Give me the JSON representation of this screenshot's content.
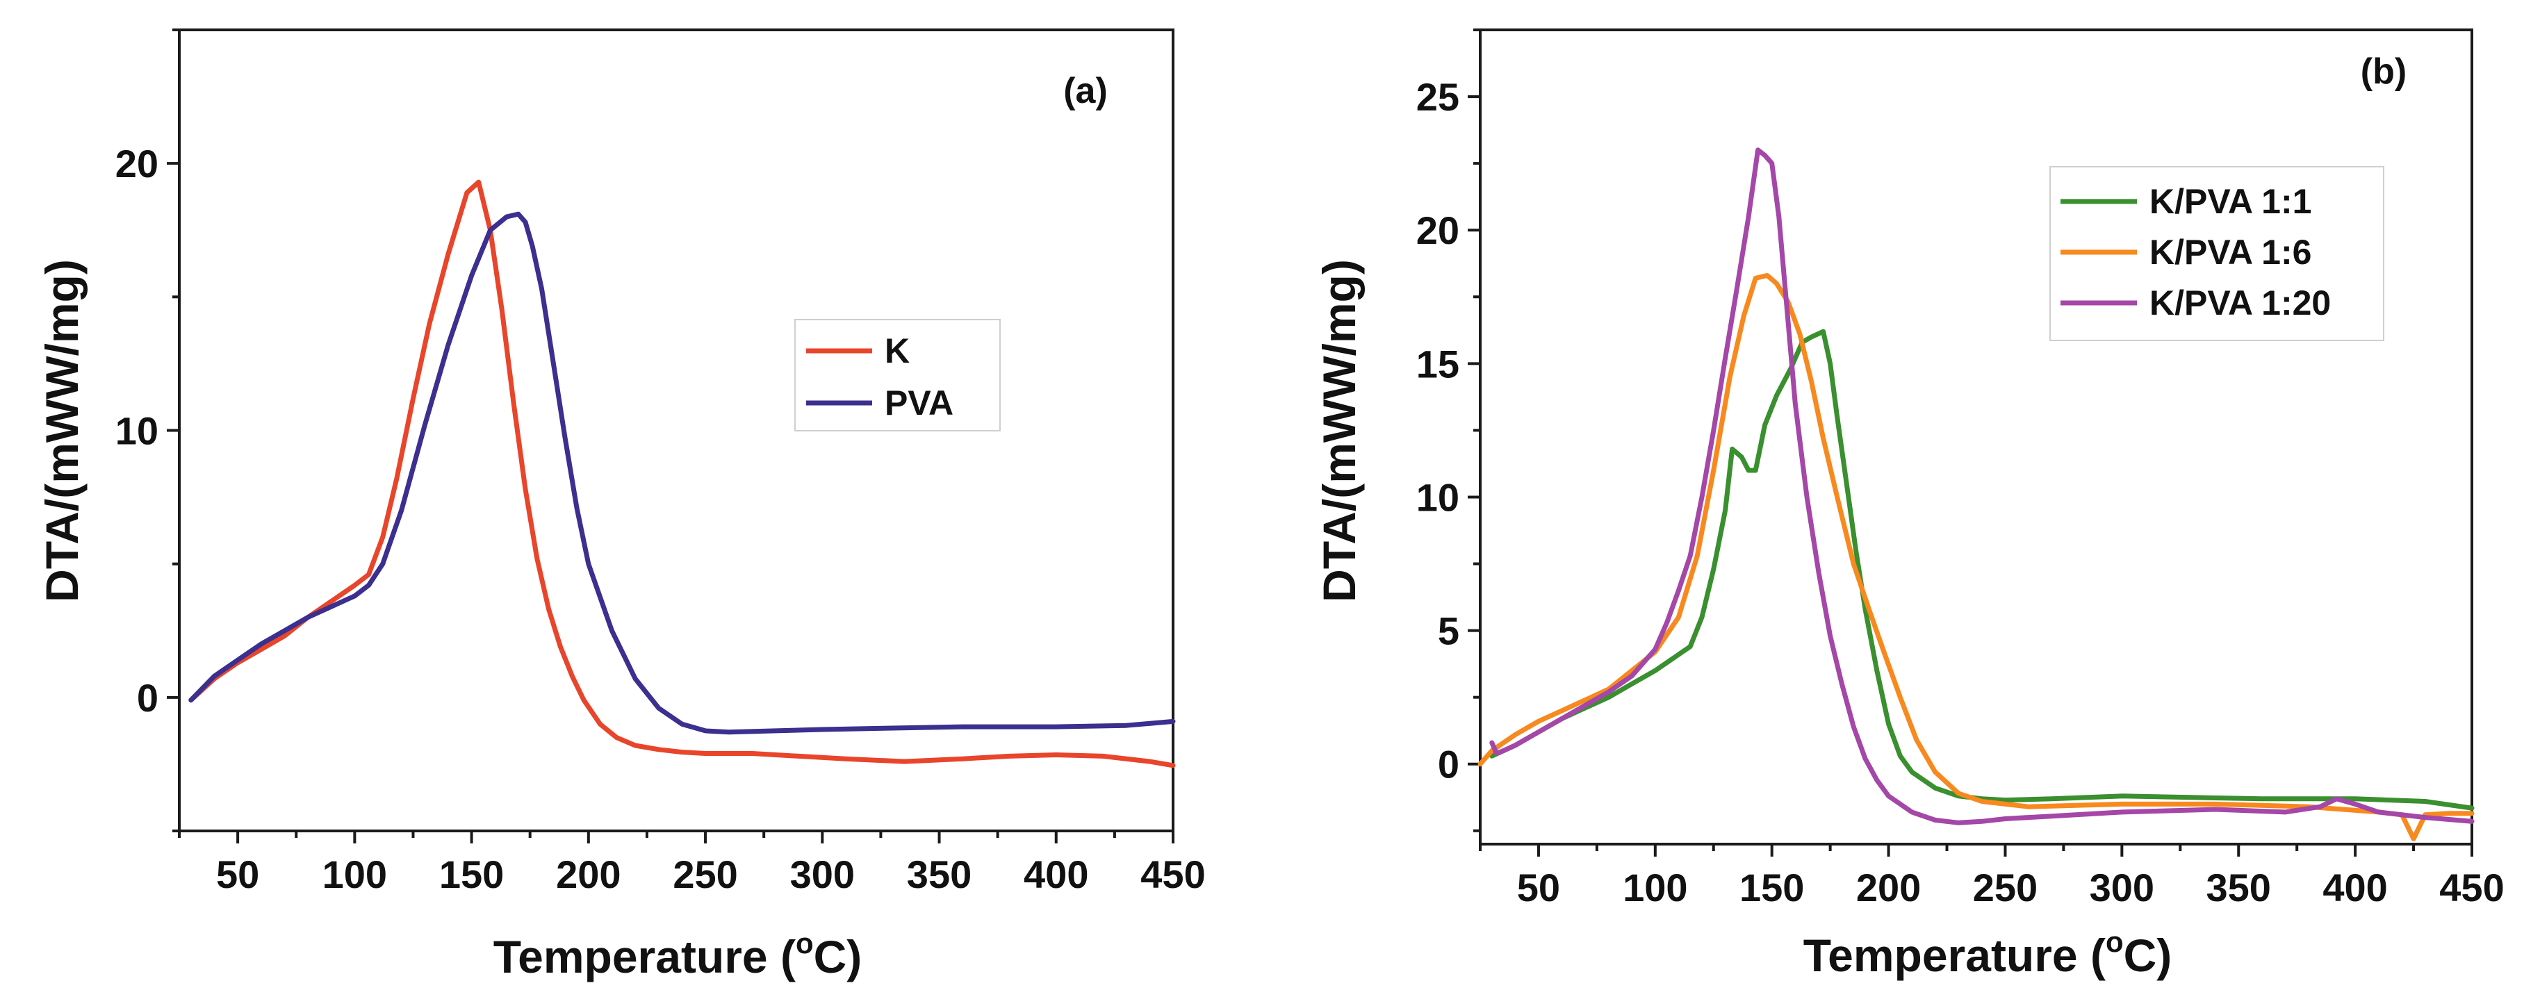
{
  "colors": {
    "K": "#e8452b",
    "PVA": "#3b2f8f",
    "K/PVA 1:1": "#3a8f2f",
    "K/PVA 1:6": "#f7891e",
    "K/PVA 1:20": "#a447a8"
  },
  "chart_data": [
    {
      "type": "line",
      "panel": "(a)",
      "xlabel": "Temperature (",
      "xlabel_sup": "o",
      "xlabel_end": "C)",
      "ylabel": "DTA/(mWW/mg)",
      "xlim": [
        25,
        450
      ],
      "ylim": [
        -5,
        25
      ],
      "xticks": [
        50,
        100,
        150,
        200,
        250,
        300,
        350,
        400,
        450
      ],
      "yticks": [
        0,
        10,
        20
      ],
      "legend_position": "center-right",
      "series": [
        {
          "name": "K",
          "x": [
            30,
            40,
            50,
            60,
            70,
            80,
            90,
            100,
            106,
            112,
            118,
            125,
            132,
            140,
            148,
            153,
            158,
            163,
            168,
            173,
            178,
            183,
            188,
            193,
            198,
            205,
            212,
            220,
            230,
            240,
            250,
            270,
            290,
            310,
            335,
            360,
            380,
            400,
            420,
            440,
            450
          ],
          "y": [
            -0.1,
            0.7,
            1.3,
            1.8,
            2.3,
            3.0,
            3.6,
            4.2,
            4.6,
            6.0,
            8.2,
            11.2,
            14.0,
            16.6,
            18.9,
            19.3,
            17.5,
            14.5,
            11.0,
            7.8,
            5.2,
            3.3,
            1.9,
            0.8,
            -0.1,
            -1.0,
            -1.5,
            -1.8,
            -1.95,
            -2.05,
            -2.1,
            -2.1,
            -2.2,
            -2.3,
            -2.4,
            -2.3,
            -2.2,
            -2.15,
            -2.2,
            -2.4,
            -2.55
          ]
        },
        {
          "name": "PVA",
          "x": [
            30,
            40,
            50,
            60,
            70,
            80,
            90,
            100,
            106,
            112,
            120,
            130,
            140,
            150,
            158,
            165,
            170,
            173,
            176,
            180,
            185,
            190,
            195,
            200,
            210,
            220,
            230,
            240,
            250,
            260,
            280,
            300,
            330,
            360,
            400,
            430,
            450
          ],
          "y": [
            -0.1,
            0.8,
            1.4,
            2.0,
            2.5,
            3.0,
            3.4,
            3.8,
            4.2,
            5.0,
            7.0,
            10.2,
            13.2,
            15.8,
            17.5,
            18.0,
            18.1,
            17.8,
            16.9,
            15.3,
            12.5,
            9.7,
            7.1,
            5.0,
            2.5,
            0.7,
            -0.4,
            -1.0,
            -1.25,
            -1.3,
            -1.25,
            -1.2,
            -1.15,
            -1.1,
            -1.1,
            -1.05,
            -0.9
          ]
        }
      ]
    },
    {
      "type": "line",
      "panel": "(b)",
      "xlabel": "Temperature (",
      "xlabel_sup": "o",
      "xlabel_end": "C)",
      "ylabel": "DTA/(mWW/mg)",
      "xlim": [
        25,
        450
      ],
      "ylim": [
        -3,
        27.5
      ],
      "xticks": [
        50,
        100,
        150,
        200,
        250,
        300,
        350,
        400,
        450
      ],
      "yticks": [
        0,
        5,
        10,
        15,
        20,
        25
      ],
      "legend_position": "top-right",
      "series": [
        {
          "name": "K/PVA 1:1",
          "x": [
            30,
            40,
            50,
            60,
            70,
            80,
            90,
            100,
            115,
            120,
            125,
            130,
            133,
            137,
            140,
            143,
            147,
            152,
            158,
            163,
            167,
            172,
            175,
            178,
            182,
            186,
            190,
            195,
            200,
            205,
            210,
            220,
            230,
            240,
            250,
            270,
            300,
            330,
            360,
            400,
            430,
            450
          ],
          "y": [
            0.3,
            0.7,
            1.2,
            1.7,
            2.1,
            2.5,
            3.0,
            3.5,
            4.4,
            5.5,
            7.3,
            9.5,
            11.8,
            11.5,
            11.0,
            11.0,
            12.7,
            13.8,
            14.8,
            15.8,
            16.0,
            16.2,
            15.0,
            13.0,
            10.5,
            8.0,
            5.8,
            3.5,
            1.5,
            0.3,
            -0.3,
            -0.9,
            -1.2,
            -1.3,
            -1.35,
            -1.3,
            -1.2,
            -1.25,
            -1.3,
            -1.3,
            -1.4,
            -1.65
          ]
        },
        {
          "name": "K/PVA 1:6",
          "x": [
            25,
            30,
            40,
            50,
            60,
            70,
            80,
            90,
            100,
            110,
            118,
            125,
            132,
            138,
            143,
            148,
            152,
            157,
            162,
            167,
            172,
            178,
            185,
            192,
            198,
            205,
            212,
            220,
            230,
            240,
            260,
            300,
            340,
            380,
            410,
            420,
            425,
            430,
            440,
            450
          ],
          "y": [
            0.0,
            0.5,
            1.1,
            1.6,
            2.0,
            2.4,
            2.8,
            3.5,
            4.2,
            5.5,
            7.8,
            11.0,
            14.5,
            16.8,
            18.2,
            18.3,
            18.0,
            17.3,
            16.1,
            14.3,
            12.2,
            10.0,
            7.5,
            5.7,
            4.2,
            2.5,
            0.9,
            -0.3,
            -1.1,
            -1.4,
            -1.6,
            -1.5,
            -1.5,
            -1.6,
            -1.8,
            -1.9,
            -2.8,
            -1.9,
            -1.85,
            -1.85
          ]
        },
        {
          "name": "K/PVA 1:20",
          "x": [
            30,
            32,
            35,
            40,
            50,
            60,
            70,
            80,
            90,
            100,
            105,
            110,
            115,
            120,
            125,
            130,
            135,
            140,
            144,
            147,
            150,
            153,
            156,
            160,
            165,
            170,
            175,
            180,
            185,
            190,
            195,
            200,
            210,
            220,
            230,
            240,
            250,
            270,
            300,
            340,
            370,
            385,
            392,
            400,
            410,
            430,
            450
          ],
          "y": [
            0.8,
            0.4,
            0.5,
            0.7,
            1.2,
            1.7,
            2.2,
            2.7,
            3.3,
            4.3,
            5.3,
            6.5,
            7.8,
            10.0,
            12.5,
            15.2,
            17.8,
            20.5,
            23.0,
            22.8,
            22.5,
            20.5,
            17.5,
            13.5,
            10.0,
            7.2,
            4.8,
            3.0,
            1.4,
            0.2,
            -0.6,
            -1.2,
            -1.8,
            -2.1,
            -2.2,
            -2.15,
            -2.05,
            -1.95,
            -1.8,
            -1.7,
            -1.8,
            -1.6,
            -1.3,
            -1.5,
            -1.8,
            -2.0,
            -2.15
          ]
        }
      ]
    }
  ]
}
